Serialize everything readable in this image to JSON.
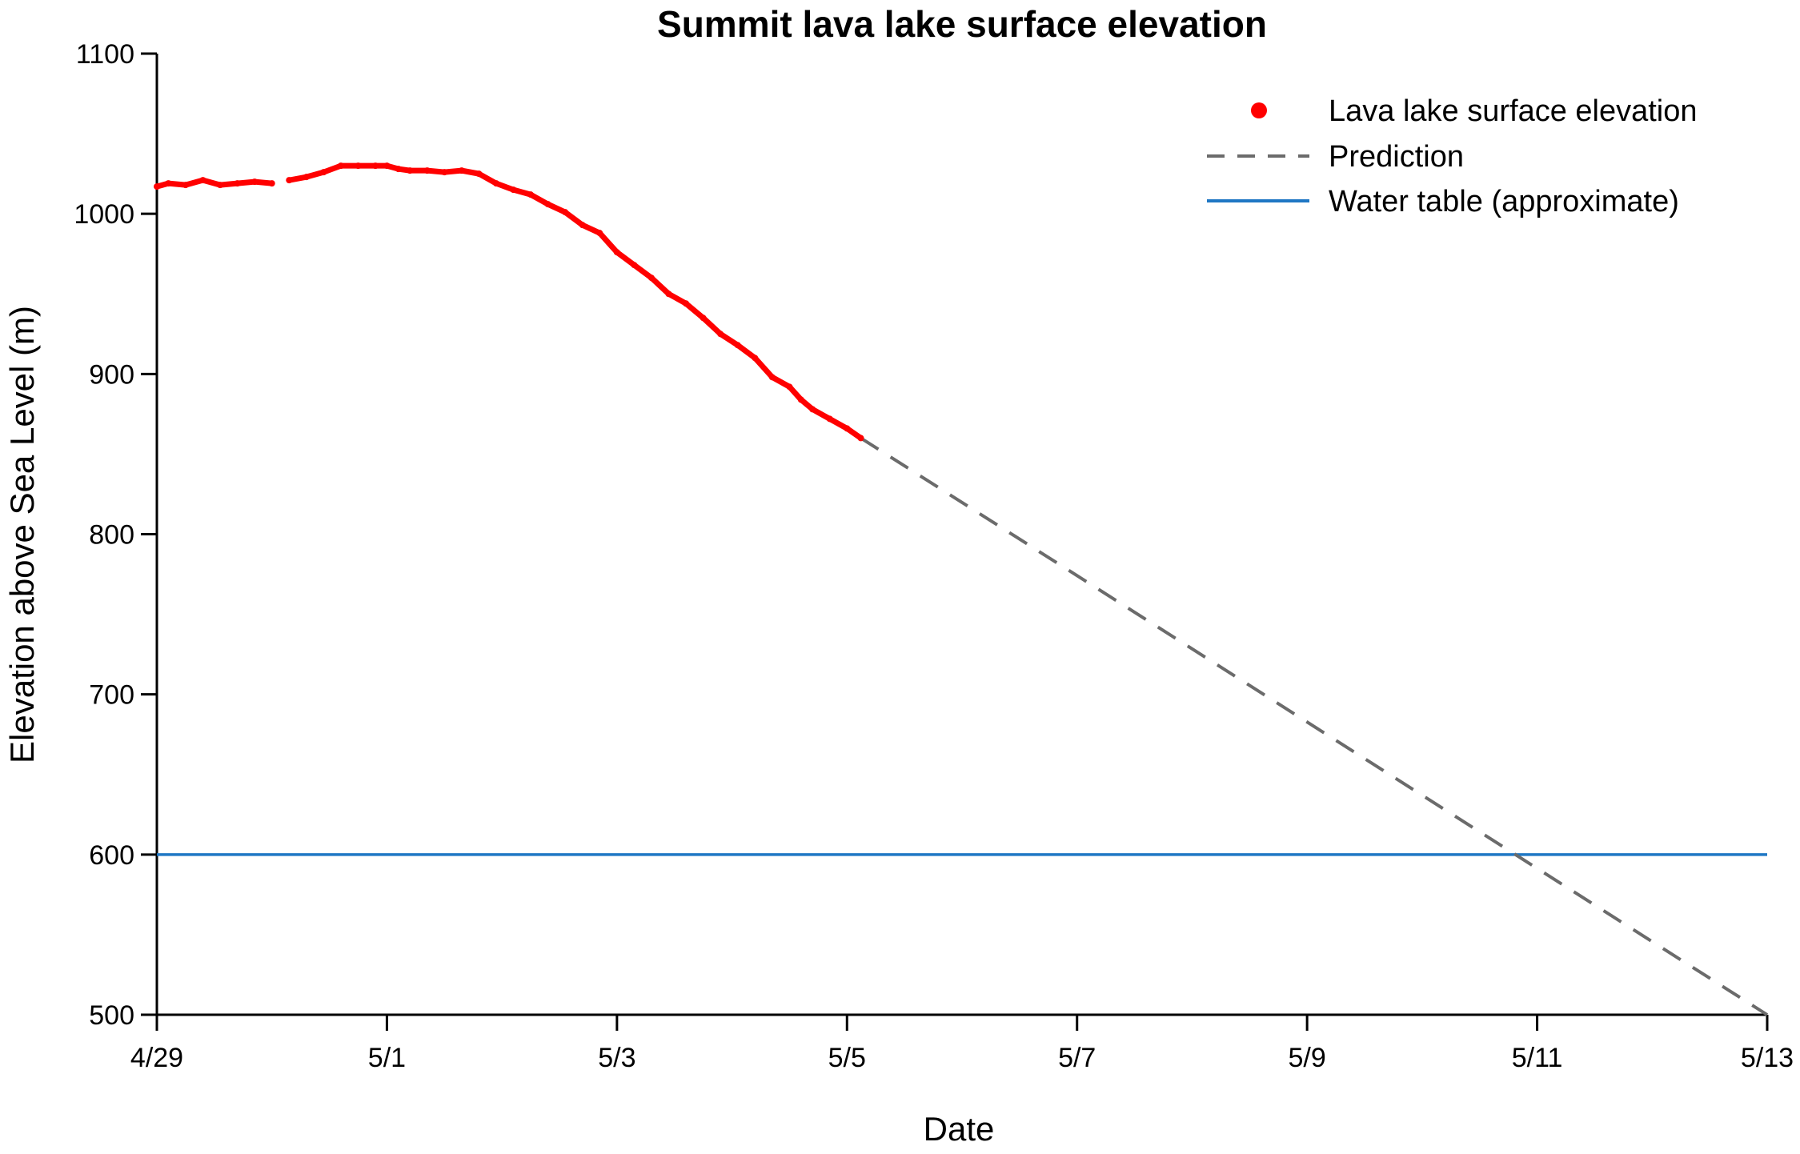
{
  "chart_data": {
    "type": "line",
    "title": "Summit lava lake surface elevation",
    "xlabel": "Date",
    "ylabel": "Elevation above Sea Level (m)",
    "x_ticks": [
      "4/29",
      "5/1",
      "5/3",
      "5/5",
      "5/7",
      "5/9",
      "5/11",
      "5/13"
    ],
    "y_ticks": [
      500,
      600,
      700,
      800,
      900,
      1000,
      1100
    ],
    "xlim_days": [
      0,
      14
    ],
    "ylim": [
      500,
      1100
    ],
    "grid": false,
    "legend_position": "top-right",
    "legend": [
      "Lava lake surface elevation",
      "Prediction",
      "Water table (approximate)"
    ],
    "series": [
      {
        "name": "Lava lake surface elevation",
        "marker": "dot",
        "color": "#ff0000",
        "days_since_4_29": [
          0.0,
          0.1,
          0.25,
          0.4,
          0.55,
          0.7,
          0.85,
          1.0,
          1.15,
          1.3,
          1.45,
          1.6,
          1.75,
          1.9,
          2.0,
          2.1,
          2.2,
          2.35,
          2.5,
          2.65,
          2.8,
          2.95,
          3.1,
          3.25,
          3.4,
          3.55,
          3.7,
          3.85,
          4.0,
          4.15,
          4.3,
          4.45,
          4.6,
          4.75,
          4.9,
          5.05,
          5.2,
          5.35,
          5.5,
          5.6,
          5.7,
          5.85,
          6.0,
          6.12
        ],
        "segments_gap_after_index": [
          7
        ],
        "values": [
          1017,
          1019,
          1018,
          1021,
          1018,
          1019,
          1020,
          1019,
          1021,
          1023,
          1026,
          1030,
          1030,
          1030,
          1030,
          1028,
          1027,
          1027,
          1026,
          1027,
          1025,
          1019,
          1015,
          1012,
          1006,
          1001,
          993,
          988,
          976,
          968,
          960,
          950,
          944,
          935,
          925,
          918,
          910,
          898,
          892,
          884,
          878,
          872,
          866,
          860
        ]
      },
      {
        "name": "Prediction",
        "style": "dashed",
        "color": "#6b6b6b",
        "days_since_4_29": [
          6.12,
          14.0
        ],
        "values": [
          860,
          500
        ]
      },
      {
        "name": "Water table (approximate)",
        "style": "solid",
        "color": "#1f77c4",
        "days_since_4_29": [
          0,
          14.0
        ],
        "values": [
          600,
          600
        ]
      }
    ]
  }
}
